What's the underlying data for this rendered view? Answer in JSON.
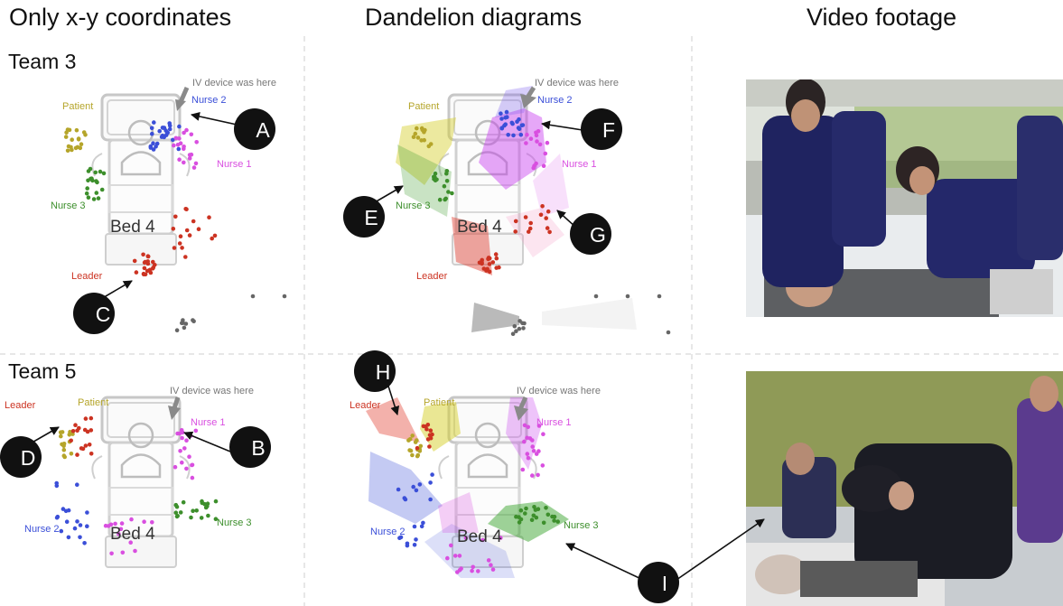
{
  "columns": {
    "left": "Only x-y coordinates",
    "middle": "Dandelion diagrams",
    "right": "Video footage"
  },
  "teams": {
    "top": "Team 3",
    "bottom": "Team 5"
  },
  "labels": {
    "patient": "Patient",
    "nurse1": "Nurse 1",
    "nurse2": "Nurse 2",
    "nurse3": "Nurse 3",
    "leader": "Leader",
    "bed": "Bed 4",
    "iv": "IV device was here"
  },
  "markers": {
    "a": "A",
    "b": "B",
    "c": "C",
    "d": "D",
    "e": "E",
    "f": "F",
    "g": "G",
    "h": "H",
    "i": "I"
  },
  "colors": {
    "patient": "#b5a52a",
    "nurse1": "#d94fe0",
    "nurse2": "#3b4fd8",
    "nurse3": "#3d8f2c",
    "leader": "#cc3322",
    "grey": "#666666"
  }
}
